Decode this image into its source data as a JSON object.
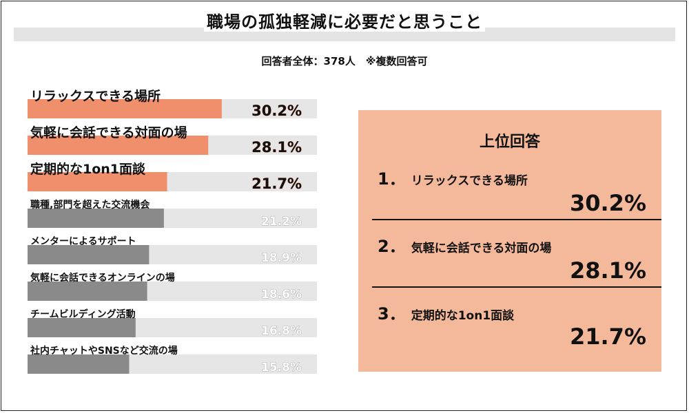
{
  "title": "職場の孤独軽減に必要だと思うこと",
  "subtitle": "回答者全体：378人　※複数回答可",
  "colors": {
    "highlight": "#ef8f6b",
    "normal": "#8a8a8a",
    "track": "#e6e6e6",
    "panel": "#f4b99b"
  },
  "chart_data": {
    "type": "bar",
    "orientation": "horizontal",
    "categories": [
      "リラックスできる場所",
      "気軽に会話できる対面の場",
      "定期的な1on1面談",
      "職種,部門を超えた交流機会",
      "メンターによるサポート",
      "気軽に会話できるオンラインの場",
      "チームビルディング活動",
      "社内チャットやSNSなど交流の場"
    ],
    "values": [
      30.2,
      28.1,
      21.7,
      21.2,
      18.9,
      18.6,
      16.8,
      15.8
    ],
    "value_labels": [
      "30.2%",
      "28.1%",
      "21.7%",
      "21.2%",
      "18.9%",
      "18.6%",
      "16.8%",
      "15.8%"
    ],
    "highlight_top_n": 3,
    "xlim": [
      0,
      45
    ]
  },
  "panel": {
    "title": "上位回答",
    "items": [
      {
        "num": "1．",
        "label": "リラックスできる場所",
        "value": "30.2%"
      },
      {
        "num": "2．",
        "label": "気軽に会話できる対面の場",
        "value": "28.1%"
      },
      {
        "num": "3．",
        "label": "定期的な1on1面談",
        "value": "21.7%"
      }
    ]
  }
}
